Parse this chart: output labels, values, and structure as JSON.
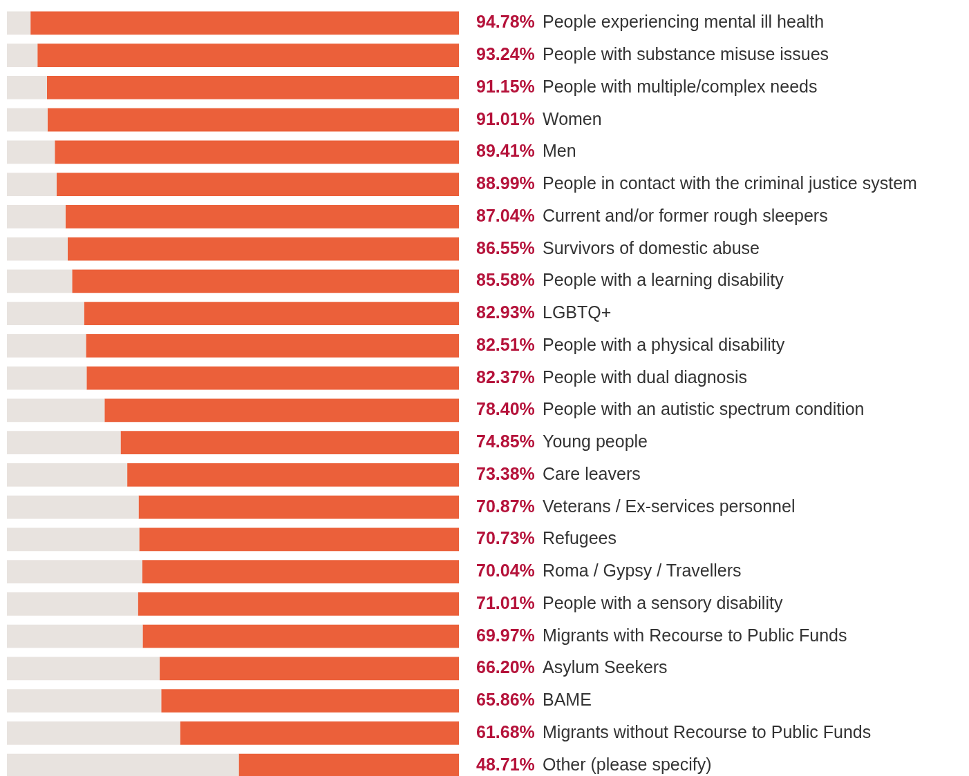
{
  "chart_data": {
    "type": "bar",
    "orientation": "horizontal",
    "stacked": true,
    "xlim": [
      0,
      100
    ],
    "tick_labels": false,
    "grid": false,
    "legend": false,
    "categories": [
      "People experiencing mental ill health",
      "People with substance misuse issues",
      "People with multiple/complex needs",
      "Women",
      "Men",
      "People in contact with the criminal justice system",
      "Current and/or former rough sleepers",
      "Survivors of domestic abuse",
      "People with a learning disability",
      "LGBTQ+",
      "People with a physical disability",
      "People with dual diagnosis",
      "People with an autistic spectrum condition",
      "Young people",
      "Care leavers",
      "Veterans / Ex-services personnel",
      "Refugees",
      "Roma / Gypsy / Travellers",
      "People with a sensory disability",
      "Migrants with Recourse to Public Funds",
      "Asylum Seekers",
      "BAME",
      "Migrants without Recourse to Public Funds",
      "Other (please specify)"
    ],
    "series": [
      {
        "color": "#e8e3df",
        "values": [
          5.22,
          6.76,
          8.85,
          8.99,
          10.59,
          11.01,
          12.96,
          13.45,
          14.42,
          17.07,
          17.49,
          17.63,
          21.6,
          25.15,
          26.62,
          29.13,
          29.27,
          29.96,
          28.99,
          30.03,
          33.8,
          34.14,
          38.32,
          51.29
        ]
      },
      {
        "color": "#eb603a",
        "values": [
          94.78,
          93.24,
          91.15,
          91.01,
          89.41,
          88.99,
          87.04,
          86.55,
          85.58,
          82.93,
          82.51,
          82.37,
          78.4,
          74.85,
          73.38,
          70.87,
          70.73,
          70.04,
          71.01,
          69.97,
          66.2,
          65.86,
          61.68,
          48.71
        ],
        "value_labels": [
          "94.78%",
          "93.24%",
          "91.15%",
          "91.01%",
          "89.41%",
          "88.99%",
          "87.04%",
          "86.55%",
          "85.58%",
          "82.93%",
          "82.51%",
          "82.37%",
          "78.40%",
          "74.85%",
          "73.38%",
          "70.87%",
          "70.73%",
          "70.04%",
          "71.01%",
          "69.97%",
          "66.20%",
          "65.86%",
          "61.68%",
          "48.71%"
        ]
      }
    ]
  }
}
